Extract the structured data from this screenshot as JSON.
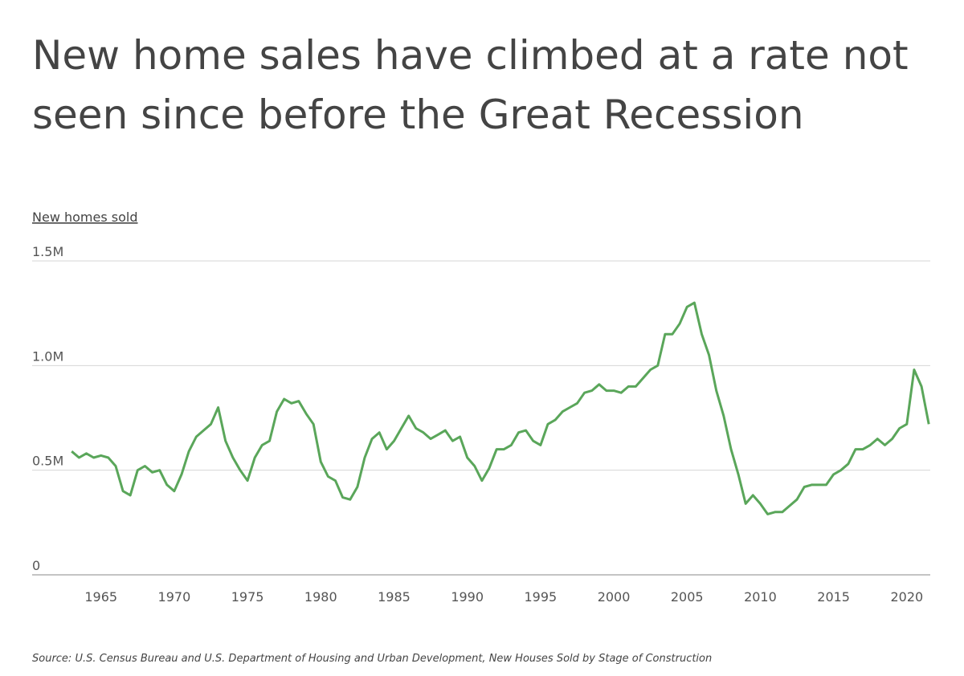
{
  "chart_data": {
    "type": "line",
    "title_lines": [
      "New home sales have climbed at a rate not",
      "seen since before the Great Recession"
    ],
    "y_label": "New homes sold",
    "source": "Source:  U.S. Census Bureau and U.S. Department of Housing and Urban Development, New Houses Sold by Stage of Construction",
    "color": "#5aa65a",
    "x": [
      1963,
      1963.5,
      1964,
      1964.5,
      1965,
      1965.5,
      1966,
      1966.5,
      1967,
      1967.5,
      1968,
      1968.5,
      1969,
      1969.5,
      1970,
      1970.5,
      1971,
      1971.5,
      1972,
      1972.5,
      1973,
      1973.5,
      1974,
      1974.5,
      1975,
      1975.5,
      1976,
      1976.5,
      1977,
      1977.5,
      1978,
      1978.5,
      1979,
      1979.5,
      1980,
      1980.5,
      1981,
      1981.5,
      1982,
      1982.5,
      1983,
      1983.5,
      1984,
      1984.5,
      1985,
      1985.5,
      1986,
      1986.5,
      1987,
      1987.5,
      1988,
      1988.5,
      1989,
      1989.5,
      1990,
      1990.5,
      1991,
      1991.5,
      1992,
      1992.5,
      1993,
      1993.5,
      1994,
      1994.5,
      1995,
      1995.5,
      1996,
      1996.5,
      1997,
      1997.5,
      1998,
      1998.5,
      1999,
      1999.5,
      2000,
      2000.5,
      2001,
      2001.5,
      2002,
      2002.5,
      2003,
      2003.5,
      2004,
      2004.5,
      2005,
      2005.5,
      2006,
      2006.5,
      2007,
      2007.5,
      2008,
      2008.5,
      2009,
      2009.5,
      2010,
      2010.5,
      2011,
      2011.5,
      2012,
      2012.5,
      2013,
      2013.5,
      2014,
      2014.5,
      2015,
      2015.5,
      2016,
      2016.5,
      2017,
      2017.5,
      2018,
      2018.5,
      2019,
      2019.5,
      2020,
      2020.5,
      2021,
      2021.5
    ],
    "values": [
      590000,
      560000,
      580000,
      560000,
      570000,
      560000,
      520000,
      400000,
      380000,
      500000,
      520000,
      490000,
      500000,
      430000,
      400000,
      480000,
      590000,
      660000,
      690000,
      720000,
      800000,
      640000,
      560000,
      500000,
      450000,
      560000,
      620000,
      640000,
      780000,
      840000,
      820000,
      830000,
      770000,
      720000,
      540000,
      470000,
      450000,
      370000,
      360000,
      420000,
      560000,
      650000,
      680000,
      600000,
      640000,
      700000,
      760000,
      700000,
      680000,
      650000,
      670000,
      690000,
      640000,
      660000,
      560000,
      520000,
      450000,
      510000,
      600000,
      600000,
      620000,
      680000,
      690000,
      640000,
      620000,
      720000,
      740000,
      780000,
      800000,
      820000,
      870000,
      880000,
      910000,
      880000,
      880000,
      870000,
      900000,
      900000,
      940000,
      980000,
      1000000,
      1150000,
      1150000,
      1200000,
      1280000,
      1300000,
      1150000,
      1050000,
      880000,
      760000,
      600000,
      480000,
      340000,
      380000,
      340000,
      290000,
      300000,
      300000,
      330000,
      360000,
      420000,
      430000,
      430000,
      430000,
      480000,
      500000,
      530000,
      600000,
      600000,
      620000,
      650000,
      620000,
      650000,
      700000,
      720000,
      980000,
      900000,
      720000
    ],
    "xlim": [
      1960.3,
      2021.6
    ],
    "xticks": [
      1965,
      1970,
      1975,
      1980,
      1985,
      1990,
      1995,
      2000,
      2005,
      2010,
      2015,
      2020
    ],
    "ylim": [
      0,
      1500000
    ],
    "yticks": [
      0,
      {
        "value": 500000,
        "label": "0.5M"
      },
      {
        "value": 1000000,
        "label": "1.0M"
      },
      {
        "value": 1500000,
        "label": "1.5M"
      }
    ],
    "grid": true
  }
}
